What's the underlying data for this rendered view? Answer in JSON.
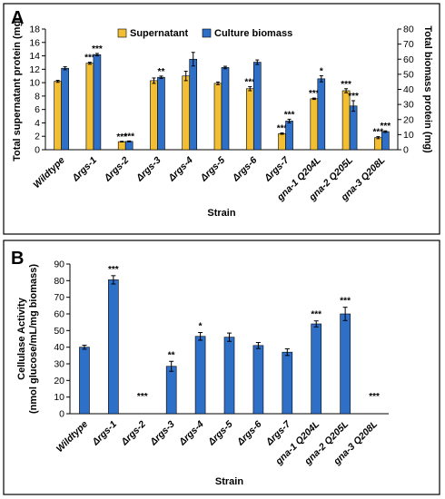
{
  "colors": {
    "supernatant": "#F2BE34",
    "biomass": "#2E6FC8",
    "bar_border": "#000000"
  },
  "chart_data": [
    {
      "panel": "A",
      "type": "bar",
      "xlabel": "Strain",
      "ylabel": "Total supernatant protein (mg)",
      "y2label": "Total biomass protein (mg)",
      "ylim": [
        0,
        18
      ],
      "y2lim": [
        0,
        80
      ],
      "yticks": [
        0,
        2,
        4,
        6,
        8,
        10,
        12,
        14,
        16,
        18
      ],
      "y2ticks": [
        0,
        10,
        20,
        30,
        40,
        50,
        60,
        70,
        80
      ],
      "legend_position": "top",
      "categories": [
        "Wildtype",
        "Δrgs-1",
        "Δrgs-2",
        "Δrgs-3",
        "Δrgs-4",
        "Δrgs-5",
        "Δrgs-6",
        "Δrgs-7",
        "gna-1 Q204L",
        "gna-2 Q205L",
        "gna-3 Q208L"
      ],
      "series": [
        {
          "name": "Supernatant",
          "axis": "left",
          "color": "#F2BE34",
          "values": [
            10.2,
            12.9,
            1.2,
            10.3,
            11.0,
            9.9,
            9.1,
            2.4,
            7.6,
            8.8,
            1.8
          ],
          "errors": [
            0.15,
            0.15,
            0.05,
            0.4,
            0.7,
            0.2,
            0.3,
            0.1,
            0.1,
            0.3,
            0.15
          ],
          "significance": [
            "",
            "***",
            "***",
            "",
            "",
            "",
            "***",
            "***",
            "***",
            "***",
            "***"
          ]
        },
        {
          "name": "Culture biomass",
          "axis": "right",
          "color": "#2E6FC8",
          "values": [
            54,
            63,
            5.5,
            48,
            60,
            54.5,
            58,
            19,
            47,
            29,
            12
          ],
          "errors": [
            1.0,
            0.8,
            0.3,
            0.8,
            4.5,
            0.8,
            1.5,
            1.2,
            2.0,
            3.5,
            0.5
          ],
          "significance": [
            "",
            "***",
            "***",
            "**",
            "",
            "",
            "",
            "***",
            "*",
            "***",
            "***"
          ]
        }
      ]
    },
    {
      "panel": "B",
      "type": "bar",
      "xlabel": "Strain",
      "ylabel_lines": [
        "Cellulase Activity",
        "(nmol glucose/mL/mg biomass)"
      ],
      "ylim": [
        0,
        90
      ],
      "yticks": [
        0,
        10,
        20,
        30,
        40,
        50,
        60,
        70,
        80,
        90
      ],
      "categories": [
        "Wildtype",
        "Δrgs-1",
        "Δrgs-2",
        "Δrgs-3",
        "Δrgs-4",
        "Δrgs-5",
        "Δrgs-6",
        "Δrgs-7",
        "gna-1 Q204L",
        "gna-2 Q205L",
        "gna-3 Q208L"
      ],
      "series": [
        {
          "color": "#2E6FC8",
          "values": [
            40,
            80.5,
            0,
            28.5,
            46.5,
            46,
            41,
            37,
            54,
            60,
            0
          ],
          "errors": [
            1.2,
            2.5,
            0,
            3.0,
            2.3,
            2.5,
            1.8,
            2.0,
            1.8,
            4.0,
            0
          ],
          "significance": [
            "",
            "***",
            "***",
            "**",
            "*",
            "",
            "",
            "",
            "***",
            "***",
            "***"
          ]
        }
      ]
    }
  ]
}
